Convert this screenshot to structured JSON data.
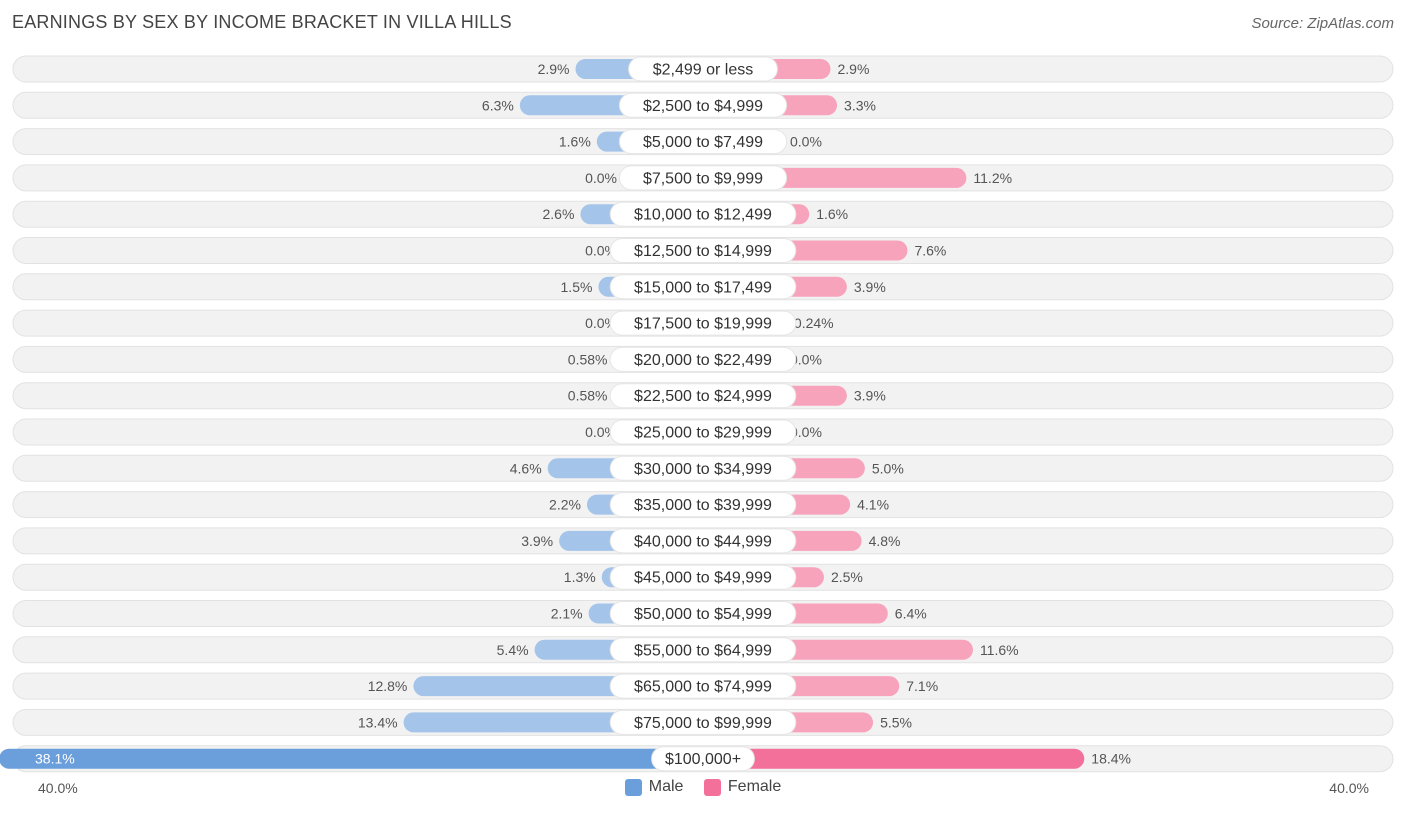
{
  "header": {
    "title": "EARNINGS BY SEX BY INCOME BRACKET IN VILLA HILLS",
    "source": "Source: ZipAtlas.com"
  },
  "axis": {
    "left_label": "40.0%",
    "right_label": "40.0%"
  },
  "legend": {
    "male_label": "Male",
    "female_label": "Female"
  },
  "colors": {
    "male": "#a4c4ea",
    "male_strong": "#6b9fdc",
    "female": "#f7a3bc",
    "female_strong": "#f27099",
    "row_bg": "#f2f2f2",
    "row_border": "#e2e2e2"
  },
  "chart_data": {
    "type": "bar",
    "orientation": "horizontal-diverging",
    "title": "EARNINGS BY SEX BY INCOME BRACKET IN VILLA HILLS",
    "xlim": [
      -40,
      40
    ],
    "categories": [
      "$2,499 or less",
      "$2,500 to $4,999",
      "$5,000 to $7,499",
      "$7,500 to $9,999",
      "$10,000 to $12,499",
      "$12,500 to $14,999",
      "$15,000 to $17,499",
      "$17,500 to $19,999",
      "$20,000 to $22,499",
      "$22,500 to $24,999",
      "$25,000 to $29,999",
      "$30,000 to $34,999",
      "$35,000 to $39,999",
      "$40,000 to $44,999",
      "$45,000 to $49,999",
      "$50,000 to $54,999",
      "$55,000 to $64,999",
      "$65,000 to $74,999",
      "$75,000 to $99,999",
      "$100,000+"
    ],
    "series": [
      {
        "name": "Male",
        "values": [
          2.9,
          6.3,
          1.6,
          0.0,
          2.6,
          0.0,
          1.5,
          0.0,
          0.58,
          0.58,
          0.0,
          4.6,
          2.2,
          3.9,
          1.3,
          2.1,
          5.4,
          12.8,
          13.4,
          38.1
        ],
        "labels": [
          "2.9%",
          "6.3%",
          "1.6%",
          "0.0%",
          "2.6%",
          "0.0%",
          "1.5%",
          "0.0%",
          "0.58%",
          "0.58%",
          "0.0%",
          "4.6%",
          "2.2%",
          "3.9%",
          "1.3%",
          "2.1%",
          "5.4%",
          "12.8%",
          "13.4%",
          "38.1%"
        ]
      },
      {
        "name": "Female",
        "values": [
          2.9,
          3.3,
          0.0,
          11.2,
          1.6,
          7.6,
          3.9,
          0.24,
          0.0,
          3.9,
          0.0,
          5.0,
          4.1,
          4.8,
          2.5,
          6.4,
          11.6,
          7.1,
          5.5,
          18.4
        ],
        "labels": [
          "2.9%",
          "3.3%",
          "0.0%",
          "11.2%",
          "1.6%",
          "7.6%",
          "3.9%",
          "0.24%",
          "0.0%",
          "3.9%",
          "0.0%",
          "5.0%",
          "4.1%",
          "4.8%",
          "2.5%",
          "6.4%",
          "11.6%",
          "7.1%",
          "5.5%",
          "18.4%"
        ]
      }
    ]
  }
}
